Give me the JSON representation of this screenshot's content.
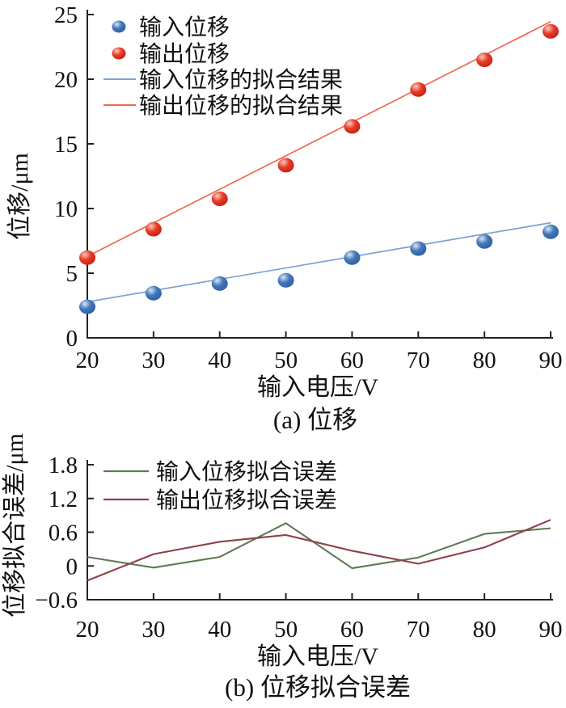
{
  "figure": {
    "type": "two-panel-scientific-figure"
  },
  "colors": {
    "axis": "#222222",
    "input_marker": "#4478b8",
    "input_marker_highlight": "#d9e6f5",
    "input_marker_dark": "#2a5ca3",
    "output_marker": "#e73c28",
    "output_marker_highlight": "#fbccc2",
    "output_marker_dark": "#bf1d0e",
    "input_fit_line": "#7aa2d2",
    "output_fit_line": "#ee6853",
    "input_error_line": "#5d7b56",
    "output_error_line": "#8f4049"
  },
  "chart_data": [
    {
      "id": "a",
      "type": "scatter",
      "title": "(a) 位移",
      "xlabel": "输入电压/V",
      "ylabel": "位移/μm",
      "xlim": [
        20,
        90
      ],
      "ylim": [
        0,
        25
      ],
      "xticks": [
        20,
        30,
        40,
        50,
        60,
        70,
        80,
        90
      ],
      "xticklabels": [
        "20",
        "30",
        "40",
        "50",
        "60",
        "70",
        "80",
        "90"
      ],
      "yticks": [
        0,
        5,
        10,
        15,
        20,
        25
      ],
      "yticklabels": [
        "0",
        "5",
        "10",
        "15",
        "20",
        "25"
      ],
      "x": [
        20,
        30,
        40,
        50,
        60,
        70,
        80,
        90
      ],
      "legend_position": "top-left",
      "grid": false,
      "series": [
        {
          "name": "输入位移",
          "kind": "scatter",
          "color": "input_marker",
          "values": [
            2.4,
            3.45,
            4.2,
            4.45,
            6.2,
            6.9,
            7.45,
            8.2
          ]
        },
        {
          "name": "输出位移",
          "kind": "scatter",
          "color": "output_marker",
          "values": [
            6.2,
            8.4,
            10.75,
            13.35,
            16.35,
            19.2,
            21.5,
            23.7
          ]
        },
        {
          "name": "输入位移的拟合结果",
          "kind": "fit-line",
          "color": "input_fit_line",
          "x": [
            20,
            90
          ],
          "values": [
            2.78,
            8.9
          ]
        },
        {
          "name": "输出位移的拟合结果",
          "kind": "fit-line",
          "color": "output_fit_line",
          "x": [
            20,
            90
          ],
          "values": [
            6.3,
            24.45
          ]
        }
      ]
    },
    {
      "id": "b",
      "type": "line",
      "title": "(b) 位移拟合误差",
      "xlabel": "输入电压/V",
      "ylabel": "位移拟合误差/μm",
      "xlim": [
        20,
        90
      ],
      "ylim": [
        -0.6,
        1.8
      ],
      "xticks": [
        20,
        30,
        40,
        50,
        60,
        70,
        80,
        90
      ],
      "xticklabels": [
        "20",
        "30",
        "40",
        "50",
        "60",
        "70",
        "80",
        "90"
      ],
      "yticks": [
        -0.6,
        0,
        0.6,
        1.2,
        1.8
      ],
      "yticklabels": [
        "−0.6",
        "0",
        "0.6",
        "1.2",
        "1.8"
      ],
      "x": [
        20,
        30,
        40,
        50,
        60,
        70,
        80,
        90
      ],
      "legend_position": "top-left",
      "grid": false,
      "series": [
        {
          "name": "输入位移拟合误差",
          "kind": "line",
          "color": "input_error_line",
          "values": [
            0.16,
            -0.03,
            0.16,
            0.76,
            -0.04,
            0.15,
            0.57,
            0.67
          ]
        },
        {
          "name": "输出位移拟合误差",
          "kind": "line",
          "color": "output_error_line",
          "values": [
            -0.26,
            0.21,
            0.43,
            0.55,
            0.27,
            0.04,
            0.33,
            0.82
          ]
        }
      ]
    }
  ]
}
